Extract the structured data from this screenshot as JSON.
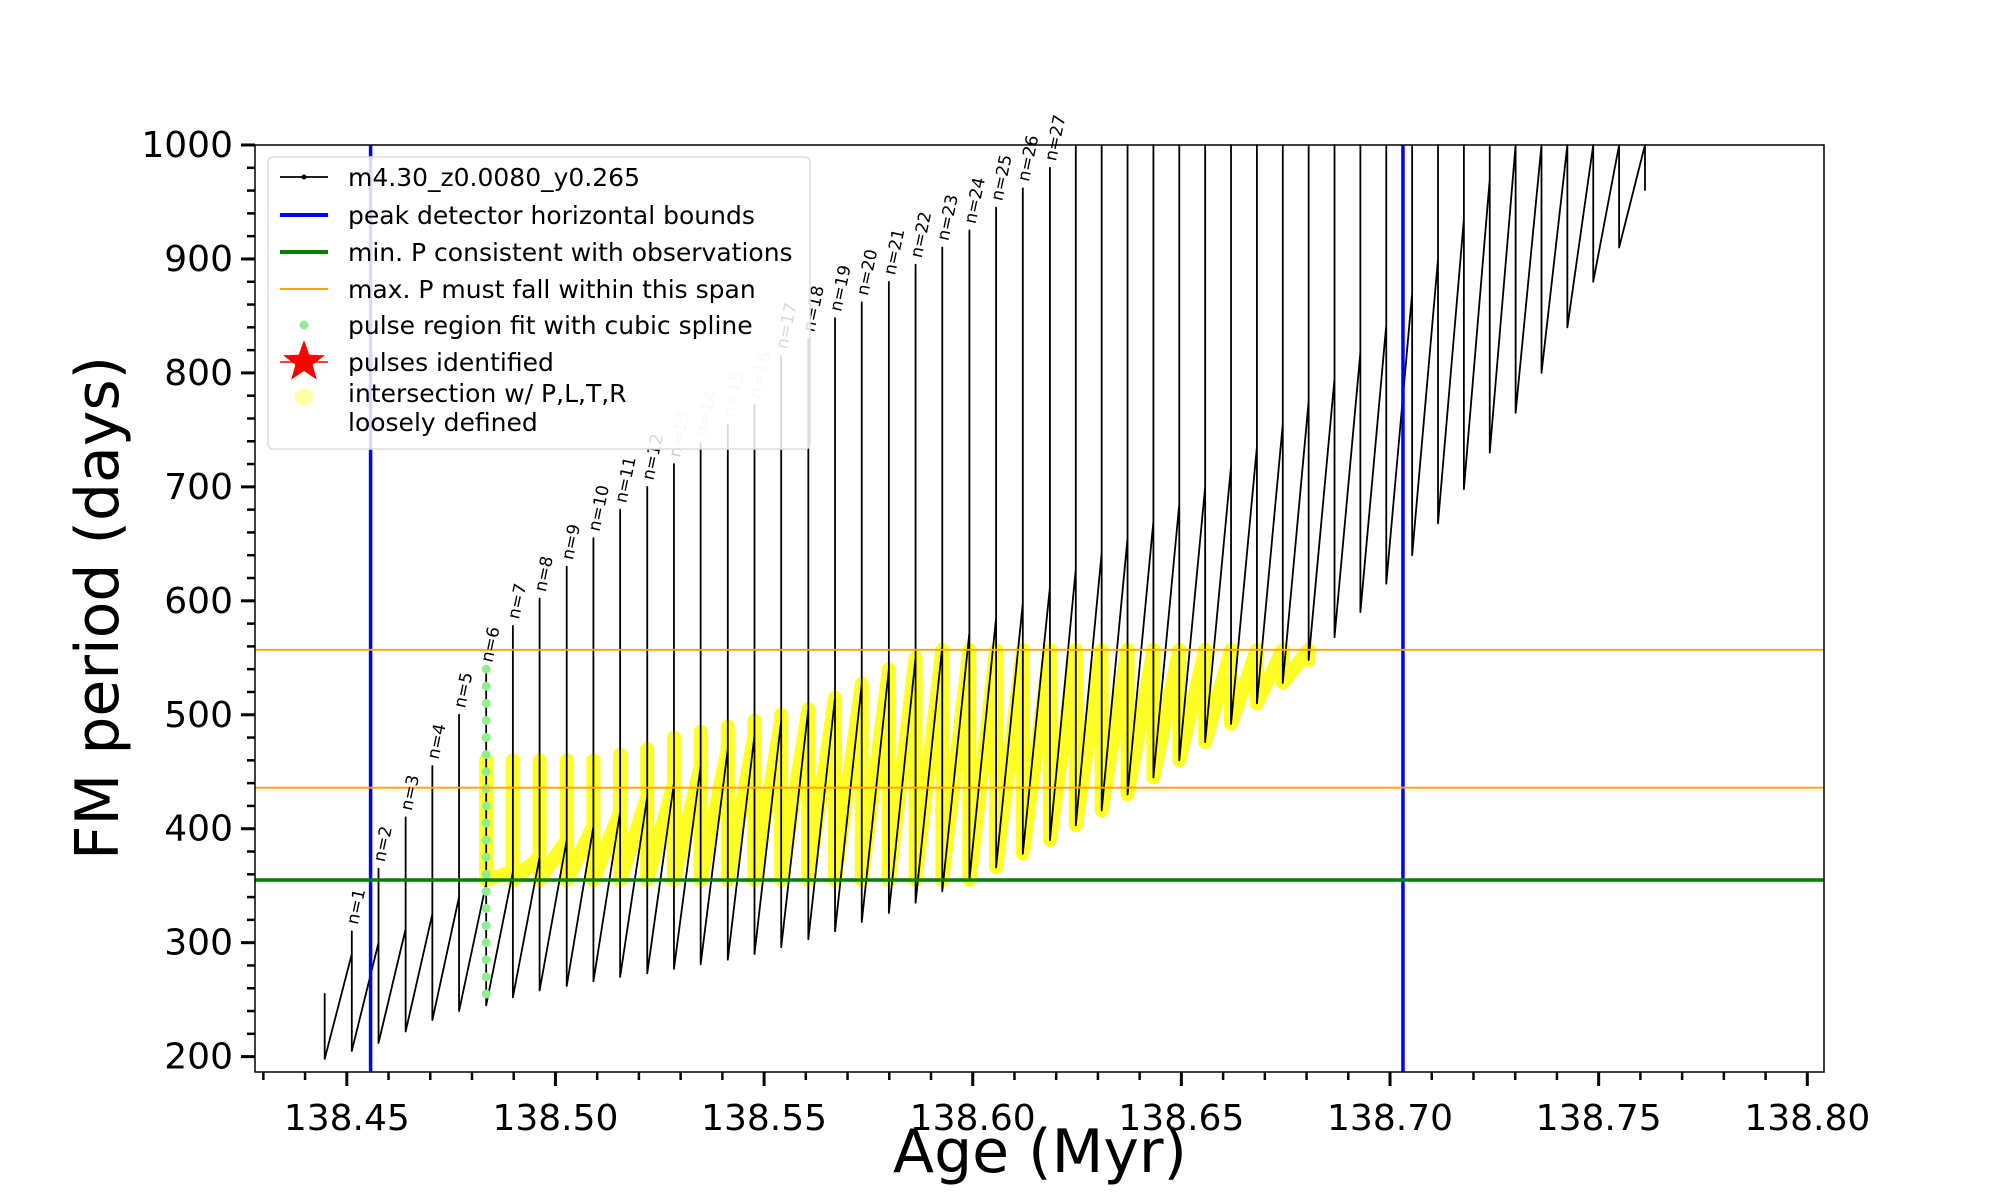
{
  "chart_data": {
    "type": "line",
    "xlabel": "Age (Myr)",
    "ylabel": "FM period (days)",
    "xlim": [
      138.428,
      138.804
    ],
    "ylim": [
      186.5,
      1000
    ],
    "xticks": [
      138.45,
      {
        "value": 138.5,
        "label": "138.50"
      },
      138.55,
      {
        "value": 138.6,
        "label": "138.60"
      },
      138.65,
      {
        "value": 138.7,
        "label": "138.70"
      },
      138.75,
      {
        "value": 138.8,
        "label": "138.80"
      }
    ],
    "yticks": [
      200,
      300,
      400,
      500,
      600,
      700,
      800,
      900,
      1000
    ],
    "xminorticks": [
      138.43,
      138.44,
      138.46,
      138.47,
      138.48,
      138.49,
      138.51,
      138.52,
      138.53,
      138.54,
      138.56,
      138.57,
      138.58,
      138.59,
      138.61,
      138.62,
      138.63,
      138.64,
      138.66,
      138.67,
      138.68,
      138.69,
      138.71,
      138.72,
      138.73,
      138.74,
      138.76,
      138.77,
      138.78,
      138.79
    ],
    "yminorticks": [
      220,
      240,
      260,
      280,
      320,
      340,
      360,
      380,
      420,
      440,
      460,
      480,
      520,
      540,
      560,
      580,
      620,
      640,
      660,
      680,
      720,
      740,
      760,
      780,
      820,
      840,
      860,
      880,
      920,
      940,
      960,
      980
    ],
    "legend": "upper left",
    "series": [
      {
        "name": "m4.30_z0.0080_y0.265",
        "color": "#000000",
        "style": "line",
        "x": [
          138.4447,
          138.4447,
          138.4447,
          138.4512,
          138.4512,
          138.4512,
          138.4576,
          138.4576,
          138.4576,
          138.4641,
          138.4641,
          138.4641,
          138.4705,
          138.4705,
          138.4705,
          138.4769,
          138.4769,
          138.4769,
          138.4834,
          138.4834,
          138.4834,
          138.4898,
          138.4898,
          138.4898,
          138.4962,
          138.4962,
          138.4962,
          138.5027,
          138.5027,
          138.5027,
          138.5091,
          138.5091,
          138.5091,
          138.5155,
          138.5155,
          138.5155,
          138.522,
          138.522,
          138.522,
          138.5284,
          138.5284,
          138.5284,
          138.5348,
          138.5348,
          138.5348,
          138.5413,
          138.5413,
          138.5413,
          138.5477,
          138.5477,
          138.5477,
          138.5541,
          138.5541,
          138.5541,
          138.5606,
          138.5606,
          138.5606,
          138.567,
          138.567,
          138.567,
          138.5734,
          138.5734,
          138.5734,
          138.5799,
          138.5799,
          138.5799,
          138.5863,
          138.5863,
          138.5863,
          138.5927,
          138.5927,
          138.5927,
          138.5992,
          138.5992,
          138.5992,
          138.6056,
          138.6056,
          138.6056,
          138.612,
          138.612,
          138.612,
          138.6185,
          138.6185,
          138.6185,
          138.6247,
          138.6247,
          138.6247,
          138.6309,
          138.6309,
          138.6309,
          138.6371,
          138.6371,
          138.6371,
          138.6433,
          138.6433,
          138.6433,
          138.6495,
          138.6495,
          138.6495,
          138.6557,
          138.6557,
          138.6557,
          138.6619,
          138.6619,
          138.6619,
          138.6681,
          138.6681,
          138.6681,
          138.6743,
          138.6743,
          138.6743,
          138.6805,
          138.6805,
          138.6805,
          138.6867,
          138.6867,
          138.6867,
          138.6929,
          138.6929,
          138.6929,
          138.6991,
          138.6991,
          138.6991,
          138.7053,
          138.7053,
          138.7053,
          138.7115,
          138.7115,
          138.7115,
          138.7177,
          138.7177,
          138.7177,
          138.7239,
          138.7239,
          138.7239,
          138.7301,
          138.7301,
          138.7301,
          138.7363,
          138.7363,
          138.7363,
          138.7425,
          138.7425,
          138.7425,
          138.7487,
          138.7487,
          138.7487,
          138.7549,
          138.7549,
          138.7549,
          138.7611,
          138.7611,
          138.7611
        ],
        "values": [
          250,
          255,
          198,
          290,
          310,
          205,
          300,
          365,
          212,
          312,
          410,
          222,
          325,
          455,
          232,
          340,
          500,
          240,
          352,
          540,
          245,
          362,
          578,
          252,
          375,
          602,
          258,
          390,
          630,
          262,
          402,
          655,
          266,
          415,
          680,
          270,
          428,
          700,
          273,
          440,
          720,
          277,
          455,
          738,
          281,
          470,
          755,
          285,
          482,
          772,
          290,
          495,
          815,
          296,
          505,
          830,
          303,
          515,
          848,
          310,
          527,
          862,
          318,
          540,
          880,
          326,
          550,
          895,
          335,
          560,
          910,
          345,
          572,
          925,
          355,
          585,
          945,
          366,
          598,
          962,
          378,
          612,
          980,
          390,
          628,
          1000,
          403,
          642,
          1000,
          416,
          655,
          1000,
          430,
          670,
          1000,
          445,
          685,
          1000,
          460,
          700,
          1000,
          476,
          718,
          1000,
          492,
          735,
          1000,
          510,
          755,
          1000,
          528,
          775,
          1000,
          548,
          795,
          1000,
          568,
          818,
          1000,
          590,
          842,
          1000,
          615,
          870,
          1000,
          640,
          900,
          1000,
          668,
          935,
          1000,
          698,
          970,
          1000,
          730,
          1000,
          1000,
          765,
          1000,
          1000,
          800,
          1000,
          1000,
          840,
          1000,
          1000,
          880,
          1000,
          1000,
          910,
          1000,
          1000,
          960
        ]
      },
      {
        "name": "pulse region fit with cubic spline",
        "color": "#90ee90",
        "style": "dots",
        "x": [
          138.4834,
          138.4834,
          138.4834,
          138.4834,
          138.4834,
          138.4834,
          138.4834,
          138.4834,
          138.4834,
          138.4834,
          138.4834,
          138.4834,
          138.4834,
          138.4834,
          138.4834,
          138.4834,
          138.4834,
          138.4834,
          138.4834,
          138.4834
        ],
        "values": [
          255,
          270,
          285,
          300,
          315,
          330,
          345,
          360,
          375,
          390,
          405,
          420,
          435,
          450,
          465,
          480,
          495,
          510,
          525,
          540
        ]
      },
      {
        "name": "pulses identified",
        "color": "#ff0000",
        "style": "star",
        "x": [],
        "values": []
      },
      {
        "name": "intersection w/ P,L,T,R\nloosely defined",
        "color": "#ffff00",
        "style": "band",
        "x": [
          138.4834,
          138.4834,
          138.4834,
          138.4898,
          138.4898,
          138.4898,
          138.4962,
          138.4962,
          138.4962,
          138.5027,
          138.5027,
          138.5027,
          138.5091,
          138.5091,
          138.5091,
          138.5155,
          138.5155,
          138.5155,
          138.522,
          138.522,
          138.522,
          138.5284,
          138.5284,
          138.5284,
          138.5348,
          138.5348,
          138.5348,
          138.5413,
          138.5413,
          138.5413,
          138.5477,
          138.5477,
          138.5477,
          138.5541,
          138.5541,
          138.5541,
          138.5606,
          138.5606,
          138.5606,
          138.567,
          138.567,
          138.567,
          138.5734,
          138.5734,
          138.5734,
          138.5799,
          138.5799,
          138.5799,
          138.5863,
          138.5863,
          138.5863,
          138.5927,
          138.5927,
          138.5927,
          138.5992,
          138.5992,
          138.5992,
          138.6056,
          138.6056,
          138.6056,
          138.612,
          138.612,
          138.612,
          138.6185,
          138.6185,
          138.6185,
          138.6247,
          138.6247,
          138.6247,
          138.6309,
          138.6309,
          138.6309,
          138.6371,
          138.6371,
          138.6371,
          138.6433,
          138.6433,
          138.6433,
          138.6495,
          138.6495,
          138.6495,
          138.6557,
          138.6557,
          138.6557,
          138.6619,
          138.6619,
          138.6619,
          138.6681,
          138.6681,
          138.6681,
          138.6743,
          138.6743,
          138.6743,
          138.6805,
          138.6805,
          138.6805
        ],
        "values": [
          355,
          460,
          355,
          362,
          460,
          355,
          375,
          460,
          355,
          390,
          460,
          355,
          402,
          460,
          355,
          415,
          465,
          355,
          428,
          470,
          355,
          440,
          480,
          355,
          455,
          485,
          355,
          470,
          490,
          355,
          482,
          495,
          355,
          495,
          500,
          355,
          505,
          505,
          355,
          515,
          515,
          355,
          527,
          527,
          355,
          540,
          540,
          355,
          550,
          550,
          355,
          557,
          557,
          355,
          557,
          557,
          355,
          557,
          557,
          366,
          557,
          557,
          378,
          557,
          557,
          390,
          557,
          557,
          403,
          557,
          557,
          416,
          557,
          557,
          430,
          557,
          557,
          445,
          557,
          557,
          460,
          557,
          557,
          476,
          557,
          557,
          492,
          557,
          557,
          510,
          557,
          557,
          528,
          557,
          557,
          548
        ]
      }
    ],
    "reference_lines": [
      {
        "name": "peak detector horizontal bounds",
        "orientation": "vertical",
        "color": "#0000ff",
        "values": [
          138.4557,
          138.7031
        ]
      },
      {
        "name": "min. P consistent with observations",
        "orientation": "horizontal",
        "color": "#008000",
        "values": [
          355
        ]
      },
      {
        "name": "max. P must fall within this span",
        "orientation": "horizontal",
        "color": "#ffa500",
        "values": [
          436,
          557
        ]
      }
    ],
    "annotations": [
      {
        "text": "n=1",
        "x": 138.4512,
        "y": 310,
        "color": "#000000"
      },
      {
        "text": "n=2",
        "x": 138.4576,
        "y": 365,
        "color": "#000000"
      },
      {
        "text": "n=3",
        "x": 138.4641,
        "y": 410,
        "color": "#000000"
      },
      {
        "text": "n=4",
        "x": 138.4705,
        "y": 455,
        "color": "#000000"
      },
      {
        "text": "n=5",
        "x": 138.4769,
        "y": 500,
        "color": "#000000"
      },
      {
        "text": "n=6",
        "x": 138.4834,
        "y": 540,
        "color": "#000000"
      },
      {
        "text": "n=7",
        "x": 138.4898,
        "y": 578,
        "color": "#000000"
      },
      {
        "text": "n=8",
        "x": 138.4962,
        "y": 602,
        "color": "#000000"
      },
      {
        "text": "n=9",
        "x": 138.5027,
        "y": 630,
        "color": "#000000"
      },
      {
        "text": "n=10",
        "x": 138.5091,
        "y": 655,
        "color": "#000000"
      },
      {
        "text": "n=11",
        "x": 138.5155,
        "y": 680,
        "color": "#000000"
      },
      {
        "text": "n=12",
        "x": 138.522,
        "y": 700,
        "color": "#000000"
      },
      {
        "text": "n=13",
        "x": 138.5284,
        "y": 720,
        "color": "#cccccc"
      },
      {
        "text": "n=14",
        "x": 138.5348,
        "y": 738,
        "color": "#cccccc"
      },
      {
        "text": "n=15",
        "x": 138.5413,
        "y": 755,
        "color": "#cccccc"
      },
      {
        "text": "n=16",
        "x": 138.5477,
        "y": 772,
        "color": "#cccccc"
      },
      {
        "text": "n=17",
        "x": 138.5541,
        "y": 815,
        "color": "#000000"
      },
      {
        "text": "n=18",
        "x": 138.5606,
        "y": 830,
        "color": "#000000"
      },
      {
        "text": "n=19",
        "x": 138.567,
        "y": 848,
        "color": "#000000"
      },
      {
        "text": "n=20",
        "x": 138.5734,
        "y": 862,
        "color": "#000000"
      },
      {
        "text": "n=21",
        "x": 138.5799,
        "y": 880,
        "color": "#000000"
      },
      {
        "text": "n=22",
        "x": 138.5863,
        "y": 895,
        "color": "#000000"
      },
      {
        "text": "n=23",
        "x": 138.5927,
        "y": 910,
        "color": "#000000"
      },
      {
        "text": "n=24",
        "x": 138.5992,
        "y": 925,
        "color": "#000000"
      },
      {
        "text": "n=25",
        "x": 138.6056,
        "y": 945,
        "color": "#000000"
      },
      {
        "text": "n=26",
        "x": 138.612,
        "y": 962,
        "color": "#000000"
      },
      {
        "text": "n=27",
        "x": 138.6185,
        "y": 980,
        "color": "#000000"
      }
    ]
  }
}
